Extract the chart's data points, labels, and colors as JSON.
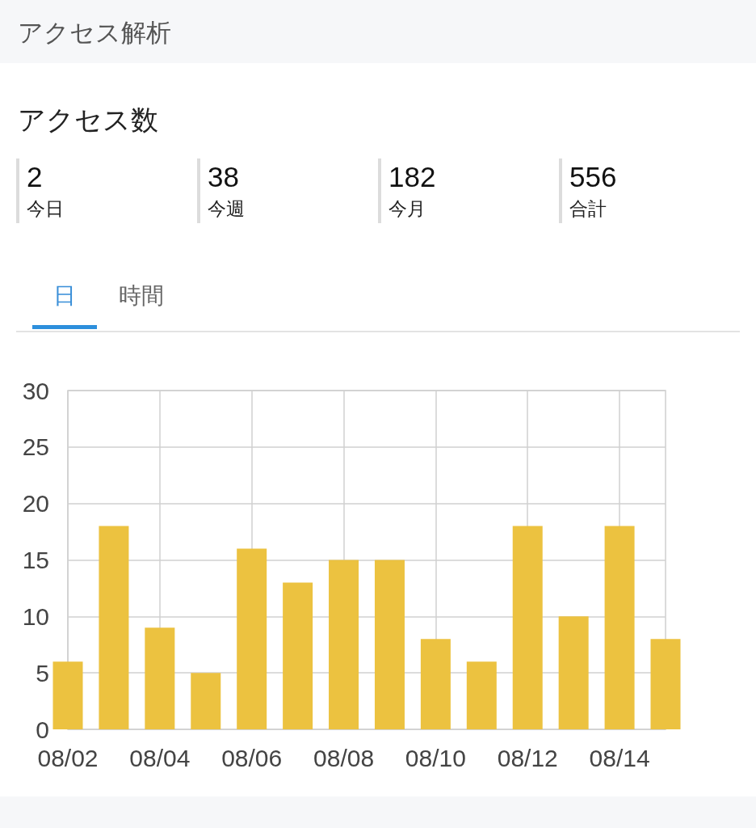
{
  "chart_data": [
    {
      "type": "other",
      "title": "アクセス解析",
      "subtitle": "アクセス数",
      "annotations": [
        "2",
        "今日",
        "38",
        "今週",
        "182",
        "今月",
        "556",
        "合計"
      ]
    },
    {
      "type": "bar",
      "annotations": [
        "日",
        "時間"
      ],
      "x": [
        "--08-02",
        "--08-03",
        "--08-04",
        "--08-05",
        "--08-06",
        "--08-07",
        "--08-08",
        "--08-09",
        "--08-10",
        "--08-11",
        "--08-12",
        "--08-13",
        "--08-14",
        "--08-15"
      ],
      "values": [
        6,
        18,
        9,
        5,
        16,
        13,
        15,
        15,
        8,
        6,
        18,
        10,
        18,
        8
      ],
      "color": "#ecc240",
      "xlim": [
        "--08-02",
        "--08-15"
      ],
      "xticks": [
        {
          "value": "--08-02",
          "label": "08/02"
        },
        {
          "value": "--08-04",
          "label": "08/04"
        },
        {
          "value": "--08-06",
          "label": "08/06"
        },
        {
          "value": "--08-08",
          "label": "08/08"
        },
        {
          "value": "--08-10",
          "label": "08/10"
        },
        {
          "value": "--08-12",
          "label": "08/12"
        },
        {
          "value": "--08-14",
          "label": "08/14"
        }
      ],
      "ylim": [
        0,
        30
      ],
      "yticks": [
        0,
        5,
        10,
        15,
        20,
        25,
        30
      ],
      "grid": true
    }
  ]
}
